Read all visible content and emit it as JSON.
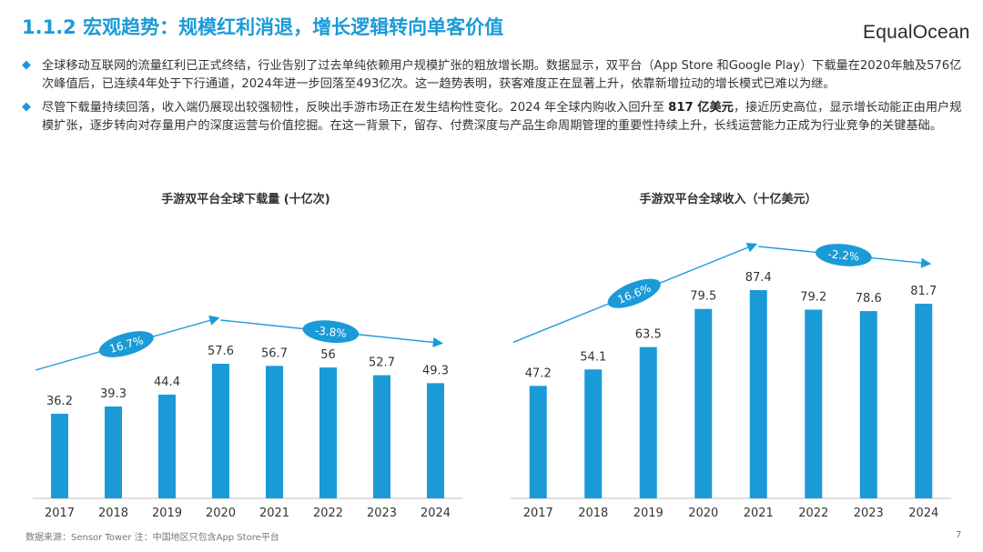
{
  "header": {
    "title": "1.1.2 宏观趋势：规模红利消退，增长逻辑转向单客价值",
    "logo": "EqualOcean"
  },
  "bullets": [
    {
      "text": "全球移动互联网的流量红利已正式终结，行业告别了过去单纯依赖用户规模扩张的粗放增长期。数据显示，双平台（App Store 和Google Play）下载量在2020年触及576亿次峰值后，已连续4年处于下行通道，2024年进一步回落至493亿次。这一趋势表明，获客难度正在显著上升，依靠新增拉动的增长模式已难以为继。"
    },
    {
      "text_before": "尽管下载量持续回落，收入端仍展现出较强韧性，反映出手游市场正在发生结构性变化。2024 年全球内购收入回升至 ",
      "text_bold": "817 亿美元",
      "text_after": "，接近历史高位，显示增长动能正由用户规模扩张，逐步转向对存量用户的深度运营与价值挖掘。在这一背景下，留存、付费深度与产品生命周期管理的重要性持续上升，长线运营能力正成为行业竞争的关键基础。"
    }
  ],
  "chart_data": [
    {
      "type": "bar",
      "title": "手游双平台全球下载量 (十亿次)",
      "categories": [
        "2017",
        "2018",
        "2019",
        "2020",
        "2021",
        "2022",
        "2023",
        "2024"
      ],
      "values": [
        36.2,
        39.3,
        44.4,
        57.6,
        56.7,
        56,
        52.7,
        49.3
      ],
      "value_labels": [
        "36.2",
        "39.3",
        "44.4",
        "57.6",
        "56.7",
        "56",
        "52.7",
        "49.3"
      ],
      "ylim": [
        0,
        66
      ],
      "bar_color": "#1a9bd7",
      "annotations": [
        {
          "label": "16.7%",
          "from": "2017",
          "to": "2020",
          "direction": "up"
        },
        {
          "label": "-3.8%",
          "from": "2020",
          "to": "2024",
          "direction": "down"
        }
      ]
    },
    {
      "type": "bar",
      "title": "手游双平台全球收入（十亿美元）",
      "categories": [
        "2017",
        "2018",
        "2019",
        "2020",
        "2021",
        "2022",
        "2023",
        "2024"
      ],
      "values": [
        47.2,
        54.1,
        63.5,
        79.5,
        87.4,
        79.2,
        78.6,
        81.7
      ],
      "value_labels": [
        "47.2",
        "54.1",
        "63.5",
        "79.5",
        "87.4",
        "79.2",
        "78.6",
        "81.7"
      ],
      "ylim": [
        0,
        100
      ],
      "bar_color": "#1a9bd7",
      "annotations": [
        {
          "label": "16.6%",
          "from": "2017",
          "to": "2021",
          "direction": "up"
        },
        {
          "label": "-2.2%",
          "from": "2021",
          "to": "2024",
          "direction": "down"
        }
      ]
    }
  ],
  "footer": {
    "source": "数据来源：Sensor Tower 注：中国地区只包含App Store平台",
    "page_number": "7"
  },
  "colors": {
    "accent": "#1a9bd7",
    "text": "#333333"
  }
}
